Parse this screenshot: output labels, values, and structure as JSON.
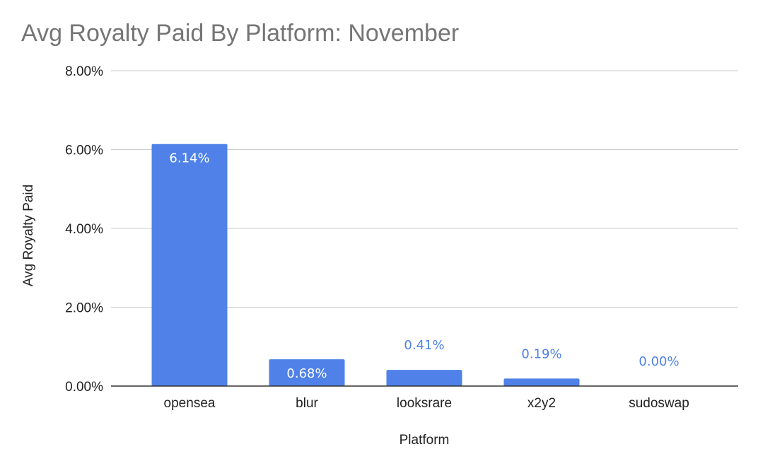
{
  "chart_data": {
    "type": "bar",
    "title": "Avg Royalty Paid By Platform: November",
    "xlabel": "Platform",
    "ylabel": "Avg Royalty Paid",
    "categories": [
      "opensea",
      "blur",
      "looksrare",
      "x2y2",
      "sudoswap"
    ],
    "values": [
      6.14,
      0.68,
      0.41,
      0.19,
      0.0
    ],
    "data_labels": [
      "6.14%",
      "0.68%",
      "0.41%",
      "0.19%",
      "0.00%"
    ],
    "ylim": [
      0,
      8
    ],
    "yticks": [
      0,
      2,
      4,
      6,
      8
    ],
    "ytick_labels": [
      "0.00%",
      "2.00%",
      "4.00%",
      "6.00%",
      "8.00%"
    ],
    "grid": true,
    "legend": "none",
    "colors": {
      "bar": "#4f81e8",
      "label_inside": "#ffffff",
      "label_outside": "#4f81e8",
      "grid": "#cccccc",
      "axis": "#333333",
      "title": "#757575"
    }
  }
}
